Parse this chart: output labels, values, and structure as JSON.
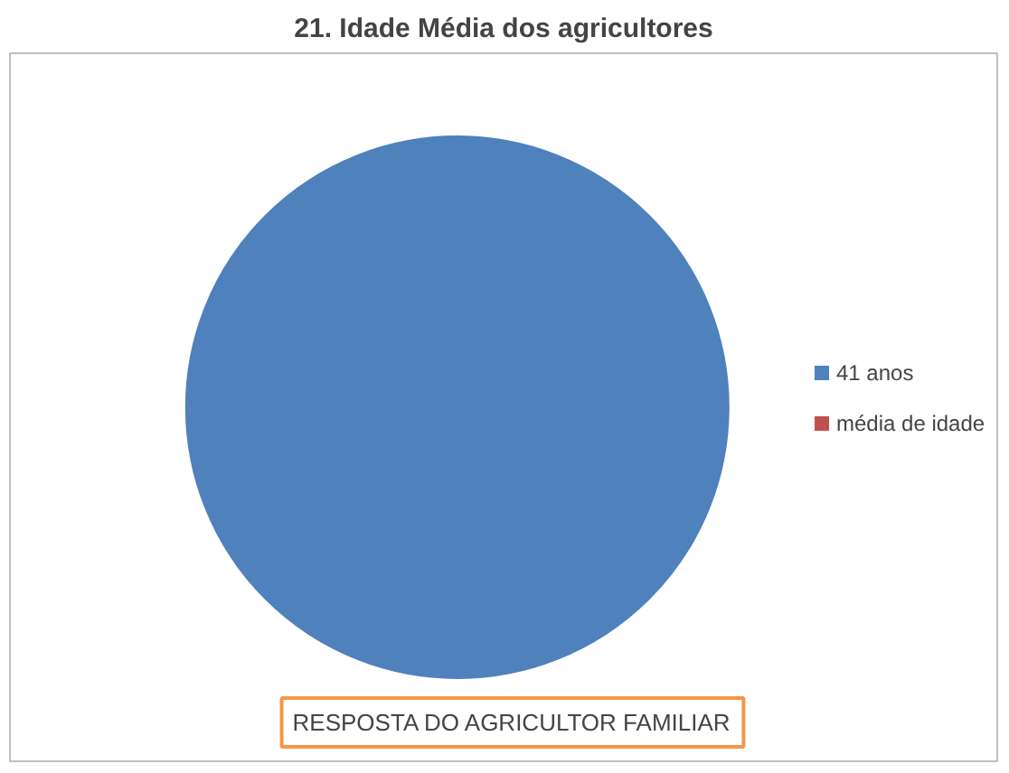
{
  "chart_data": {
    "type": "pie",
    "title": "21. Idade Média dos agricultores",
    "categories": [
      "41 anos",
      "média de idade"
    ],
    "values": [
      100,
      0
    ],
    "colors": [
      "#4f81bd",
      "#c0504d"
    ],
    "legend": "right",
    "annotations": [
      "RESPOSTA DO AGRICULTOR FAMILIAR"
    ]
  }
}
